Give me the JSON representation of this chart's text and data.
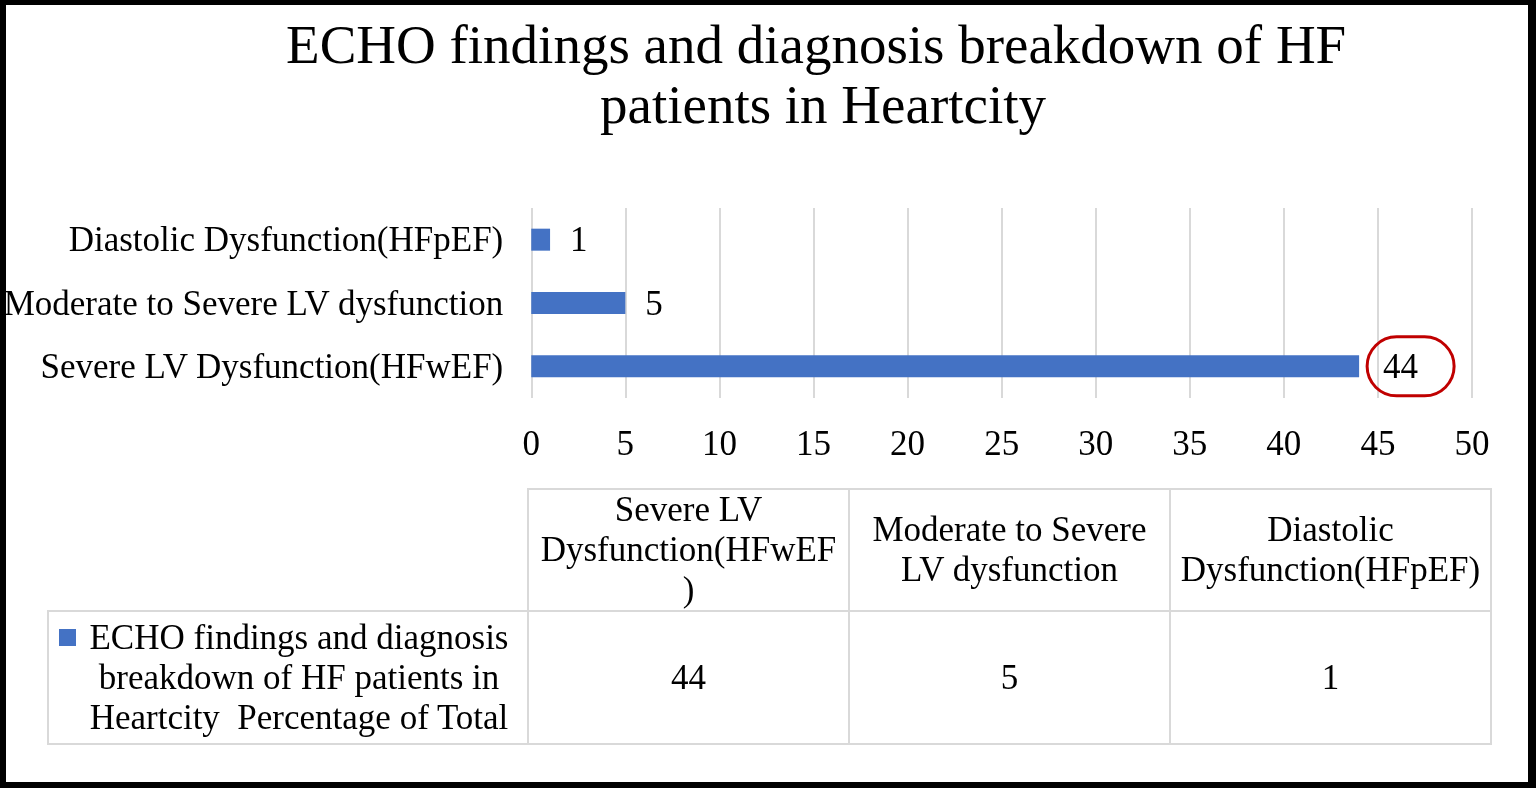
{
  "chart_data": {
    "type": "bar",
    "title": "ECHO findings and diagnosis breakdown of HF patients in Heartcity",
    "orientation": "horizontal",
    "categories": [
      "Diastolic Dysfunction(HFpEF)",
      "Moderate to Severe LV dysfunction",
      "Severe LV Dysfunction(HFwEF)"
    ],
    "series": [
      {
        "name": "ECHO findings and diagnosis breakdown of HF patients in Heartcity  Percentage of Total",
        "color": "#4472c4",
        "values": [
          1,
          5,
          44
        ],
        "value_labels": [
          "1",
          "5",
          "44"
        ]
      }
    ],
    "xlim": [
      0,
      50
    ],
    "xticks": [
      0,
      5,
      10,
      15,
      20,
      25,
      30,
      35,
      40,
      45,
      50
    ],
    "grid": "x",
    "legend": "bottom left"
  }
}
